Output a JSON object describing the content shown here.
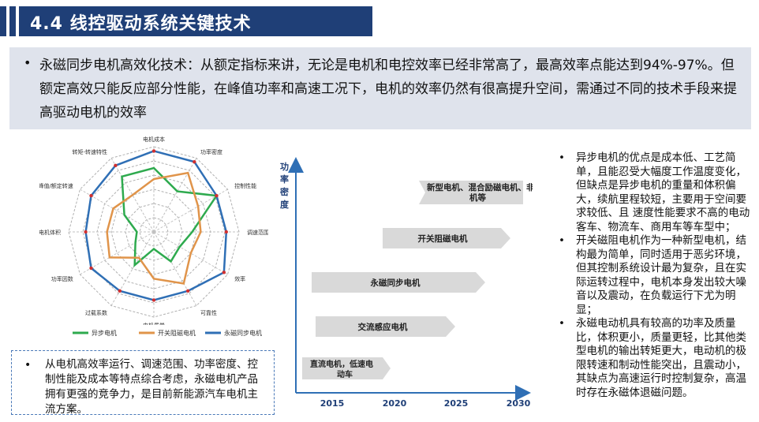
{
  "header": {
    "title": "4.4 线控驱动系统关键技术"
  },
  "intro": {
    "bullet": "•",
    "text": "永磁同步电机高效化技术：从额定指标来讲，无论是电机和电控效率已经非常高了，最高效率点能达到94%-97%。但额定高效只能反应部分性能，在峰值功率和高速工况下，电机的效率仍然有很高提升空间，需通过不同的技术手段来提高驱动电机的效率"
  },
  "radar": {
    "axes": [
      "电机成本",
      "功率密度",
      "控制性能",
      "调速范围",
      "效率",
      "可靠性",
      "电机质量",
      "过载系数",
      "功率因数",
      "电机体积",
      "峰值/额定转速",
      "转矩-转速特性"
    ],
    "axes_note": "axis labels in the screenshot are rendered too small to read exactly",
    "series": [
      {
        "name": "异步电机",
        "color": "#2eaa4e"
      },
      {
        "name": "开关阻磁电机",
        "color": "#e0944a"
      },
      {
        "name": "永磁同步电机",
        "color": "#2f6fb5"
      }
    ]
  },
  "summary": {
    "bullet": "•",
    "text": "从电机高效率运行、调速范围、功率密度、控制性能及成本等特点综合考虑，永磁电机产品拥有更强的竞争力，是目前新能源汽车电机主流方案。"
  },
  "timeline": {
    "y_label": "功率密度",
    "years": [
      "2015",
      "2020",
      "2025",
      "2030"
    ],
    "arrows": [
      {
        "label": "新型电机、混合励磁电机、非晶电机等"
      },
      {
        "label": "开关阻磁电机"
      },
      {
        "label": "永磁同步电机"
      },
      {
        "label": "交流感应电机"
      },
      {
        "label": "直流电机，低速电动车"
      }
    ]
  },
  "right": {
    "items": [
      {
        "bullet": "•",
        "text": "异步电机的优点是成本低、工艺简单，且能忍受大幅度工作温度变化，但缺点是异步电机的重量和体积偏大，续航里程较短，主要用于空间要求较低、且 速度性能要求不高的电动客车、物流车、商用车等车型中；"
      },
      {
        "bullet": "•",
        "text": "开关磁阻电机作为一种新型电机，结构最为简单，同时适用于恶劣环境，但其控制系统设计最为复杂，且在实际运转过程中，电机本身发出较大噪音以及震动，在负载运行下尤为明显；"
      },
      {
        "bullet": "•",
        "text": "永磁电动机具有较高的功率及质量比，体积更小，质量更轻，比其他类型电机的输出转矩更大，电动机的极限转速和制动性能突出，且震动小，其缺点为高速运行时控制复杂，高温时存在永磁体退磁问题。"
      }
    ]
  }
}
